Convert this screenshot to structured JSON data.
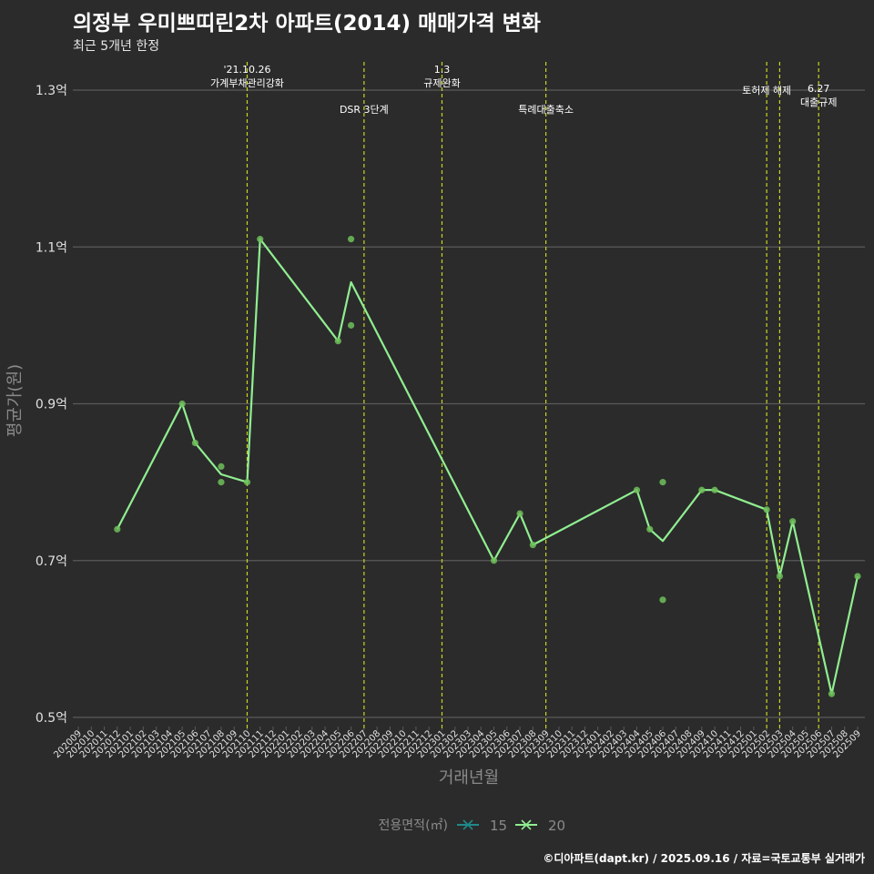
{
  "header": {
    "title": "의정부 우미쁘띠린2차 아파트(2014) 매매가격 변화",
    "subtitle": "최근 5개년 한정"
  },
  "footer": {
    "caption": "©디아파트(dapt.kr) / 2025.09.16 / 자료=국토교통부 실거래가"
  },
  "legend": {
    "title": "전용면적(㎡)",
    "items": [
      {
        "label": "15",
        "color": "#1f8a8a"
      },
      {
        "label": "20",
        "color": "#90ee90"
      }
    ]
  },
  "colors": {
    "background": "#2b2b2b",
    "grid": "#5a5a5a",
    "axis_text": "#e0e0e0",
    "axis_title": "#8a8a8a",
    "line": "#90ee90",
    "point": "#6fbf5a",
    "policy_line": "#c8d420",
    "annotation_text": "#ffffff"
  },
  "chart_data": {
    "type": "line",
    "xlabel": "거래년월",
    "ylabel": "평균가(원)",
    "x_categories": [
      "202009",
      "202010",
      "202011",
      "202012",
      "202101",
      "202102",
      "202103",
      "202104",
      "202105",
      "202106",
      "202107",
      "202108",
      "202109",
      "202110",
      "202111",
      "202112",
      "202201",
      "202202",
      "202203",
      "202204",
      "202205",
      "202206",
      "202207",
      "202208",
      "202209",
      "202210",
      "202211",
      "202212",
      "202301",
      "202302",
      "202303",
      "202304",
      "202305",
      "202306",
      "202307",
      "202308",
      "202309",
      "202310",
      "202311",
      "202312",
      "202401",
      "202402",
      "202403",
      "202404",
      "202405",
      "202406",
      "202407",
      "202408",
      "202409",
      "202410",
      "202411",
      "202412",
      "202501",
      "202502",
      "202503",
      "202504",
      "202505",
      "202506",
      "202507",
      "202508",
      "202509"
    ],
    "ylim": [
      0.5,
      1.3
    ],
    "y_ticks": [
      {
        "value": 0.5,
        "label": "0.5억"
      },
      {
        "value": 0.7,
        "label": "0.7억"
      },
      {
        "value": 0.9,
        "label": "0.9억"
      },
      {
        "value": 1.1,
        "label": "1.1억"
      },
      {
        "value": 1.3,
        "label": "1.3억"
      }
    ],
    "grid": true,
    "series": [
      {
        "name": "20",
        "line": [
          {
            "x": "202012",
            "y": 0.74
          },
          {
            "x": "202105",
            "y": 0.9
          },
          {
            "x": "202106",
            "y": 0.85
          },
          {
            "x": "202108",
            "y": 0.81
          },
          {
            "x": "202110",
            "y": 0.8
          },
          {
            "x": "202111",
            "y": 1.11
          },
          {
            "x": "202205",
            "y": 0.98
          },
          {
            "x": "202206",
            "y": 1.055
          },
          {
            "x": "202305",
            "y": 0.7
          },
          {
            "x": "202307",
            "y": 0.76
          },
          {
            "x": "202308",
            "y": 0.72
          },
          {
            "x": "202404",
            "y": 0.79
          },
          {
            "x": "202405",
            "y": 0.74
          },
          {
            "x": "202406",
            "y": 0.725
          },
          {
            "x": "202409",
            "y": 0.79
          },
          {
            "x": "202410",
            "y": 0.79
          },
          {
            "x": "202502",
            "y": 0.765
          },
          {
            "x": "202503",
            "y": 0.68
          },
          {
            "x": "202504",
            "y": 0.75
          },
          {
            "x": "202507",
            "y": 0.53
          },
          {
            "x": "202509",
            "y": 0.68
          }
        ],
        "points": [
          {
            "x": "202012",
            "y": 0.74
          },
          {
            "x": "202105",
            "y": 0.9
          },
          {
            "x": "202106",
            "y": 0.85
          },
          {
            "x": "202108",
            "y": 0.82
          },
          {
            "x": "202108",
            "y": 0.8
          },
          {
            "x": "202110",
            "y": 0.8
          },
          {
            "x": "202111",
            "y": 1.11
          },
          {
            "x": "202205",
            "y": 0.98
          },
          {
            "x": "202206",
            "y": 1.11
          },
          {
            "x": "202206",
            "y": 1.0
          },
          {
            "x": "202305",
            "y": 0.7
          },
          {
            "x": "202307",
            "y": 0.76
          },
          {
            "x": "202308",
            "y": 0.72
          },
          {
            "x": "202404",
            "y": 0.79
          },
          {
            "x": "202405",
            "y": 0.74
          },
          {
            "x": "202406",
            "y": 0.8
          },
          {
            "x": "202406",
            "y": 0.65
          },
          {
            "x": "202409",
            "y": 0.79
          },
          {
            "x": "202410",
            "y": 0.79
          },
          {
            "x": "202502",
            "y": 0.765
          },
          {
            "x": "202503",
            "y": 0.68
          },
          {
            "x": "202504",
            "y": 0.75
          },
          {
            "x": "202507",
            "y": 0.53
          },
          {
            "x": "202509",
            "y": 0.68
          }
        ]
      }
    ],
    "policy_events": [
      {
        "x": 13.0,
        "lines": [
          "'21.10.26",
          "가계부채관리강화"
        ],
        "row": "high"
      },
      {
        "x": 22.0,
        "lines": [
          "DSR 3단계"
        ],
        "row": "low"
      },
      {
        "x": 28.0,
        "lines": [
          "1.3",
          "규제완화"
        ],
        "row": "high"
      },
      {
        "x": 36.0,
        "lines": [
          "특례대출축소"
        ],
        "row": "low"
      },
      {
        "x": 53.0,
        "lines": [
          "토허제 해제"
        ],
        "row": "top"
      },
      {
        "x": 54.0,
        "lines": [],
        "row": "none"
      },
      {
        "x": 57.0,
        "lines": [
          "6.27",
          "대출규제"
        ],
        "row": "mid"
      }
    ]
  }
}
